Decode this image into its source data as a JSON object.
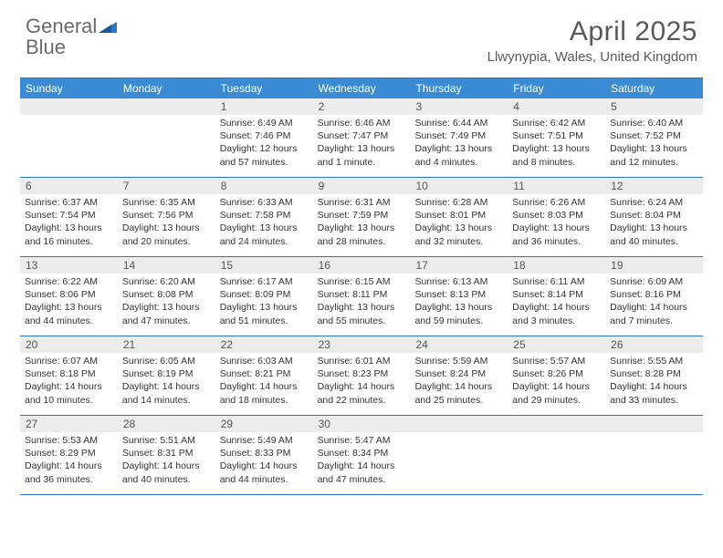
{
  "logo": {
    "general": "General",
    "blue": "Blue"
  },
  "title": "April 2025",
  "location": "Llwynypia, Wales, United Kingdom",
  "colors": {
    "header_bg": "#3b8bd4",
    "header_text": "#ffffff",
    "border": "#2a77bd",
    "daynum_bg": "#ececec",
    "text": "#333333",
    "logo_gray": "#6a6a6a",
    "logo_blue": "#2a77bd"
  },
  "day_labels": [
    "Sunday",
    "Monday",
    "Tuesday",
    "Wednesday",
    "Thursday",
    "Friday",
    "Saturday"
  ],
  "weeks": [
    [
      {
        "empty": true
      },
      {
        "empty": true
      },
      {
        "day": "1",
        "sunrise": "Sunrise: 6:49 AM",
        "sunset": "Sunset: 7:46 PM",
        "daylight": "Daylight: 12 hours and 57 minutes."
      },
      {
        "day": "2",
        "sunrise": "Sunrise: 6:46 AM",
        "sunset": "Sunset: 7:47 PM",
        "daylight": "Daylight: 13 hours and 1 minute."
      },
      {
        "day": "3",
        "sunrise": "Sunrise: 6:44 AM",
        "sunset": "Sunset: 7:49 PM",
        "daylight": "Daylight: 13 hours and 4 minutes."
      },
      {
        "day": "4",
        "sunrise": "Sunrise: 6:42 AM",
        "sunset": "Sunset: 7:51 PM",
        "daylight": "Daylight: 13 hours and 8 minutes."
      },
      {
        "day": "5",
        "sunrise": "Sunrise: 6:40 AM",
        "sunset": "Sunset: 7:52 PM",
        "daylight": "Daylight: 13 hours and 12 minutes."
      }
    ],
    [
      {
        "day": "6",
        "sunrise": "Sunrise: 6:37 AM",
        "sunset": "Sunset: 7:54 PM",
        "daylight": "Daylight: 13 hours and 16 minutes."
      },
      {
        "day": "7",
        "sunrise": "Sunrise: 6:35 AM",
        "sunset": "Sunset: 7:56 PM",
        "daylight": "Daylight: 13 hours and 20 minutes."
      },
      {
        "day": "8",
        "sunrise": "Sunrise: 6:33 AM",
        "sunset": "Sunset: 7:58 PM",
        "daylight": "Daylight: 13 hours and 24 minutes."
      },
      {
        "day": "9",
        "sunrise": "Sunrise: 6:31 AM",
        "sunset": "Sunset: 7:59 PM",
        "daylight": "Daylight: 13 hours and 28 minutes."
      },
      {
        "day": "10",
        "sunrise": "Sunrise: 6:28 AM",
        "sunset": "Sunset: 8:01 PM",
        "daylight": "Daylight: 13 hours and 32 minutes."
      },
      {
        "day": "11",
        "sunrise": "Sunrise: 6:26 AM",
        "sunset": "Sunset: 8:03 PM",
        "daylight": "Daylight: 13 hours and 36 minutes."
      },
      {
        "day": "12",
        "sunrise": "Sunrise: 6:24 AM",
        "sunset": "Sunset: 8:04 PM",
        "daylight": "Daylight: 13 hours and 40 minutes."
      }
    ],
    [
      {
        "day": "13",
        "sunrise": "Sunrise: 6:22 AM",
        "sunset": "Sunset: 8:06 PM",
        "daylight": "Daylight: 13 hours and 44 minutes."
      },
      {
        "day": "14",
        "sunrise": "Sunrise: 6:20 AM",
        "sunset": "Sunset: 8:08 PM",
        "daylight": "Daylight: 13 hours and 47 minutes."
      },
      {
        "day": "15",
        "sunrise": "Sunrise: 6:17 AM",
        "sunset": "Sunset: 8:09 PM",
        "daylight": "Daylight: 13 hours and 51 minutes."
      },
      {
        "day": "16",
        "sunrise": "Sunrise: 6:15 AM",
        "sunset": "Sunset: 8:11 PM",
        "daylight": "Daylight: 13 hours and 55 minutes."
      },
      {
        "day": "17",
        "sunrise": "Sunrise: 6:13 AM",
        "sunset": "Sunset: 8:13 PM",
        "daylight": "Daylight: 13 hours and 59 minutes."
      },
      {
        "day": "18",
        "sunrise": "Sunrise: 6:11 AM",
        "sunset": "Sunset: 8:14 PM",
        "daylight": "Daylight: 14 hours and 3 minutes."
      },
      {
        "day": "19",
        "sunrise": "Sunrise: 6:09 AM",
        "sunset": "Sunset: 8:16 PM",
        "daylight": "Daylight: 14 hours and 7 minutes."
      }
    ],
    [
      {
        "day": "20",
        "sunrise": "Sunrise: 6:07 AM",
        "sunset": "Sunset: 8:18 PM",
        "daylight": "Daylight: 14 hours and 10 minutes."
      },
      {
        "day": "21",
        "sunrise": "Sunrise: 6:05 AM",
        "sunset": "Sunset: 8:19 PM",
        "daylight": "Daylight: 14 hours and 14 minutes."
      },
      {
        "day": "22",
        "sunrise": "Sunrise: 6:03 AM",
        "sunset": "Sunset: 8:21 PM",
        "daylight": "Daylight: 14 hours and 18 minutes."
      },
      {
        "day": "23",
        "sunrise": "Sunrise: 6:01 AM",
        "sunset": "Sunset: 8:23 PM",
        "daylight": "Daylight: 14 hours and 22 minutes."
      },
      {
        "day": "24",
        "sunrise": "Sunrise: 5:59 AM",
        "sunset": "Sunset: 8:24 PM",
        "daylight": "Daylight: 14 hours and 25 minutes."
      },
      {
        "day": "25",
        "sunrise": "Sunrise: 5:57 AM",
        "sunset": "Sunset: 8:26 PM",
        "daylight": "Daylight: 14 hours and 29 minutes."
      },
      {
        "day": "26",
        "sunrise": "Sunrise: 5:55 AM",
        "sunset": "Sunset: 8:28 PM",
        "daylight": "Daylight: 14 hours and 33 minutes."
      }
    ],
    [
      {
        "day": "27",
        "sunrise": "Sunrise: 5:53 AM",
        "sunset": "Sunset: 8:29 PM",
        "daylight": "Daylight: 14 hours and 36 minutes."
      },
      {
        "day": "28",
        "sunrise": "Sunrise: 5:51 AM",
        "sunset": "Sunset: 8:31 PM",
        "daylight": "Daylight: 14 hours and 40 minutes."
      },
      {
        "day": "29",
        "sunrise": "Sunrise: 5:49 AM",
        "sunset": "Sunset: 8:33 PM",
        "daylight": "Daylight: 14 hours and 44 minutes."
      },
      {
        "day": "30",
        "sunrise": "Sunrise: 5:47 AM",
        "sunset": "Sunset: 8:34 PM",
        "daylight": "Daylight: 14 hours and 47 minutes."
      },
      {
        "empty": true
      },
      {
        "empty": true
      },
      {
        "empty": true
      }
    ]
  ]
}
